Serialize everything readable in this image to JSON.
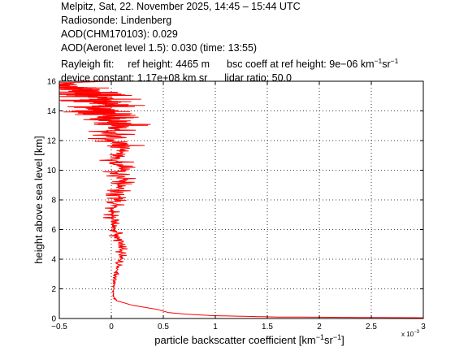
{
  "header": {
    "title": "Melpitz, Sat, 22. November 2025, 14:45 – 15:44 UTC",
    "radiosonde": "Radiosonde: Lindenberg",
    "aod_chm": "AOD(CHM170103): 0.029",
    "aod_aeronet": "AOD(Aeronet level 1.5): 0.030   (time: 13:55)",
    "rayleigh_label": "Rayleigh fit:",
    "ref_height": "ref height: 4465 m",
    "bsc_coeff_prefix": "bsc coeff at ref height: 9e−06 km",
    "bsc_unit_sr": "sr",
    "exp_minus1": "−1",
    "device_constant": "device constant: 1.17e+08 km sr",
    "lidar_ratio": "lidar ratio: 50.0"
  },
  "chart_data": {
    "type": "line",
    "title": "",
    "xlabel_prefix": "particle backscatter coefficient [km",
    "xlabel_mid": "sr",
    "xlabel_suffix": "]",
    "xlabel_exp": "−1",
    "ylabel": "height above sea level [km]",
    "x_scale_label": "x 10",
    "x_scale_exp": "−3",
    "xlim": [
      -0.5,
      3.0
    ],
    "ylim": [
      0,
      16
    ],
    "xticks": [
      -0.5,
      0,
      0.5,
      1,
      1.5,
      2,
      2.5,
      3
    ],
    "xtick_labels": [
      "−0.5",
      "0",
      "0.5",
      "1",
      "1.5",
      "2",
      "2.5",
      "3"
    ],
    "yticks": [
      0,
      2,
      4,
      6,
      8,
      10,
      12,
      14,
      16
    ],
    "ytick_labels": [
      "0",
      "2",
      "4",
      "6",
      "8",
      "10",
      "12",
      "14",
      "16"
    ],
    "grid": true,
    "series": [
      {
        "color": "#ff0000",
        "x": [
          3.0,
          1.6,
          0.95,
          0.7,
          0.55,
          0.45,
          0.2,
          0.05,
          0.02,
          0.02,
          0.03,
          0.05,
          0.06,
          0.08,
          0.1,
          0.09,
          0.06,
          0.02,
          0.02,
          -0.02,
          0.04,
          0.06,
          0.07,
          0.09,
          0.11,
          0.08,
          0.04,
          0.06,
          0.12,
          0.05,
          -0.05,
          0.08,
          0.1,
          -0.1,
          0.0,
          -0.08,
          -0.1,
          -0.15,
          -0.05,
          -0.15,
          -0.1,
          -0.2,
          -0.25,
          -0.2,
          -0.3,
          -0.2,
          -0.45,
          -0.3,
          -0.4,
          -0.45,
          -0.4,
          -0.45,
          0.0
        ],
        "y": [
          0.05,
          0.1,
          0.2,
          0.3,
          0.4,
          0.6,
          0.9,
          1.2,
          1.5,
          2.0,
          2.5,
          3.0,
          3.5,
          4.0,
          4.5,
          5.0,
          5.5,
          6.0,
          6.5,
          7.0,
          7.5,
          8.0,
          8.5,
          9.0,
          9.5,
          10.0,
          10.5,
          11.0,
          11.5,
          12.0,
          12.5,
          13.0,
          13.2,
          13.5,
          13.7,
          13.9,
          14.0,
          14.2,
          14.4,
          14.6,
          14.8,
          15.0,
          15.1,
          15.2,
          15.3,
          15.4,
          15.5,
          15.55,
          15.6,
          15.7,
          15.8,
          15.9,
          16.0
        ],
        "amp": [
          0,
          0,
          0,
          0,
          0,
          0,
          0,
          0.01,
          0.01,
          0.01,
          0.02,
          0.03,
          0.04,
          0.06,
          0.07,
          0.08,
          0.08,
          0.07,
          0.07,
          0.1,
          0.1,
          0.11,
          0.13,
          0.15,
          0.15,
          0.18,
          0.2,
          0.22,
          0.25,
          0.28,
          0.3,
          0.32,
          0.3,
          0.4,
          0.35,
          0.38,
          0.4,
          0.35,
          0.4,
          0.42,
          0.4,
          0.45,
          0.4,
          0.38,
          0.35,
          0.3,
          0.35,
          0.3,
          0.25,
          0.2,
          0.15,
          0.1,
          0.05
        ]
      }
    ]
  }
}
